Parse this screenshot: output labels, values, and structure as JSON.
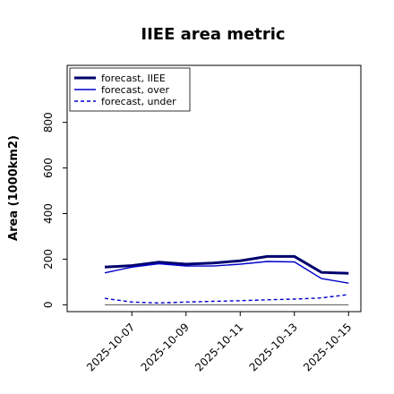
{
  "chart_data": {
    "type": "line",
    "title": "IIEE area metric",
    "xlabel": "",
    "ylabel": "Area (1000km2)",
    "x": [
      "2025-10-06",
      "2025-10-07",
      "2025-10-08",
      "2025-10-09",
      "2025-10-10",
      "2025-10-11",
      "2025-10-12",
      "2025-10-13",
      "2025-10-14",
      "2025-10-15"
    ],
    "xticks": [
      "2025-10-07",
      "2025-10-09",
      "2025-10-11",
      "2025-10-13",
      "2025-10-15"
    ],
    "highlight_tick": "2025-10-07",
    "highlight_color": "#2e8b2e",
    "yticks": [
      0,
      200,
      400,
      600,
      800
    ],
    "ylim": [
      -30,
      1050
    ],
    "zero_line": 0,
    "grid": false,
    "legend_position": "top-left",
    "series": [
      {
        "name": "forecast, IIEE",
        "values": [
          165,
          172,
          187,
          178,
          183,
          193,
          212,
          212,
          142,
          138
        ],
        "color": "#00006e",
        "style": "solid-thick"
      },
      {
        "name": "forecast, over",
        "values": [
          140,
          165,
          180,
          170,
          170,
          178,
          190,
          188,
          115,
          95
        ],
        "color": "#0000cd",
        "style": "solid"
      },
      {
        "name": "forecast, under",
        "values": [
          28,
          12,
          8,
          12,
          15,
          18,
          22,
          25,
          30,
          45
        ],
        "color": "#0000cd",
        "style": "dashed"
      }
    ]
  }
}
